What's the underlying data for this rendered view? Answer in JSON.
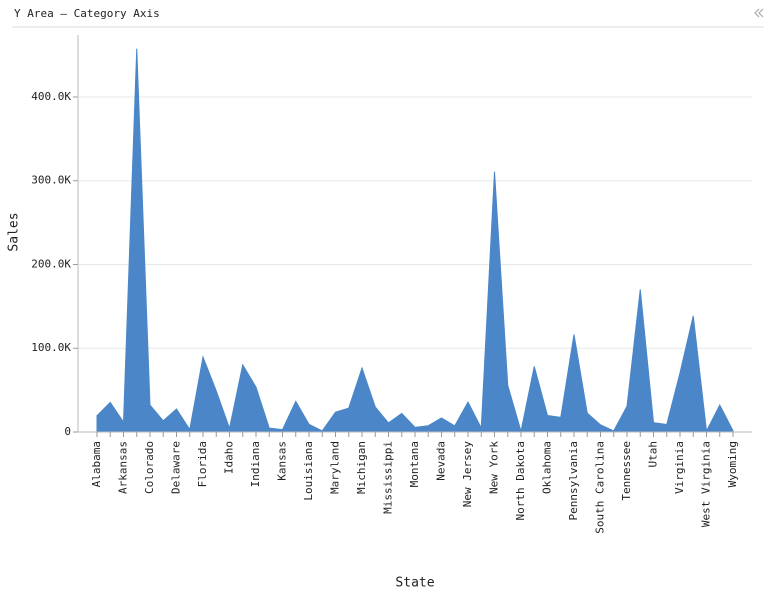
{
  "chart_data": {
    "type": "area",
    "title": "Y Area – Category Axis",
    "x_label": "State",
    "y_label": "Sales",
    "color": "#4a86c8",
    "grid": true,
    "categories": [
      "Alabama",
      null,
      "Arkansas",
      null,
      "Colorado",
      null,
      "Delaware",
      null,
      "Florida",
      null,
      "Idaho",
      null,
      "Indiana",
      null,
      "Kansas",
      null,
      "Louisiana",
      null,
      "Maryland",
      null,
      "Michigan",
      null,
      "Mississippi",
      null,
      "Montana",
      null,
      "Nevada",
      null,
      "New Jersey",
      null,
      "New York",
      null,
      "North Dakota",
      null,
      "Oklahoma",
      null,
      "Pennsylvania",
      null,
      "South Carolina",
      null,
      "Tennessee",
      null,
      "Utah",
      null,
      "Virginia",
      null,
      "West Virginia",
      null,
      "Wyoming"
    ],
    "values": [
      19500,
      35300,
      11700,
      457700,
      32100,
      13400,
      27500,
      2900,
      89500,
      49100,
      4400,
      80200,
      53600,
      4600,
      2900,
      36600,
      9200,
      1300,
      23700,
      28600,
      76300,
      29900,
      10800,
      22200,
      5600,
      7500,
      16700,
      7300,
      35800,
      4800,
      310900,
      55600,
      900,
      78300,
      19700,
      17400,
      116500,
      22600,
      8500,
      1300,
      30700,
      170200,
      11200,
      9000,
      70600,
      138600,
      1200,
      32100,
      1600
    ],
    "ylim": [
      0,
      474000
    ],
    "yticks": [
      0,
      {
        "value": 100000,
        "label": "100.0K"
      },
      {
        "value": 200000,
        "label": "200.0K"
      },
      {
        "value": 300000,
        "label": "300.0K"
      },
      {
        "value": 400000,
        "label": "400.0K"
      }
    ]
  }
}
